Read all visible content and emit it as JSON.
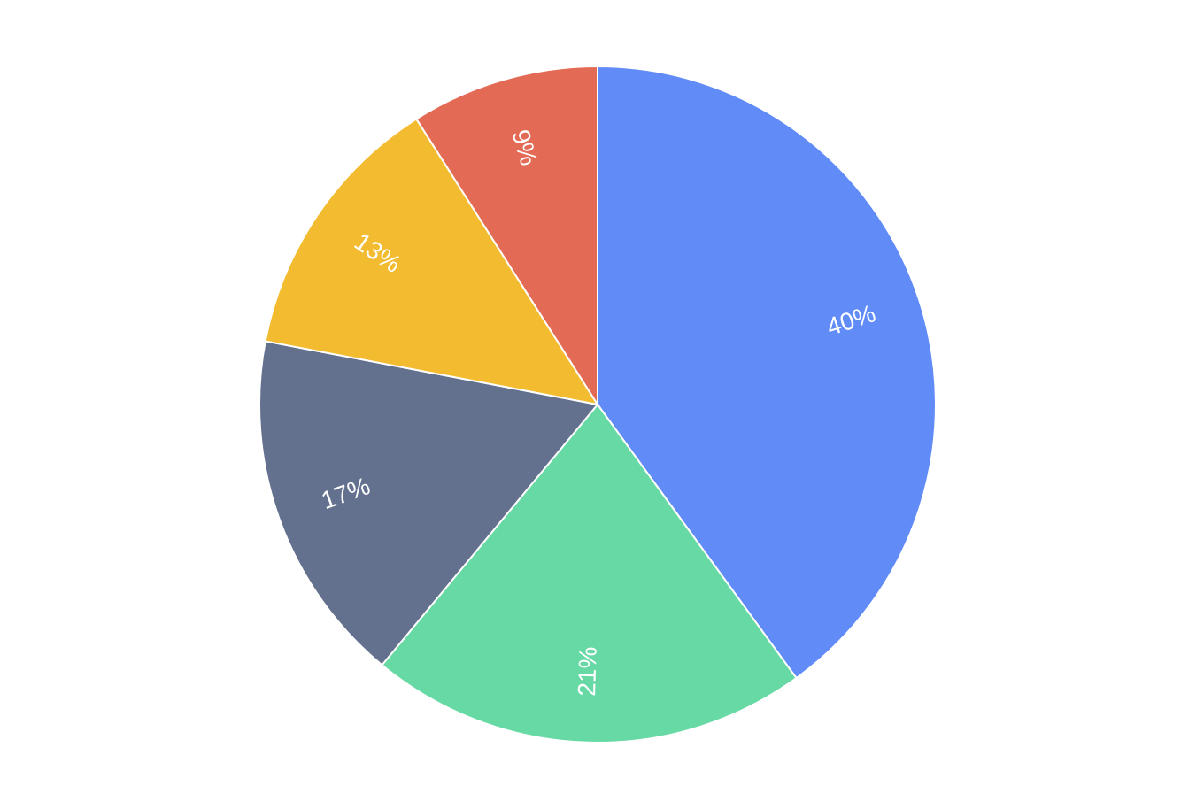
{
  "chart_data": {
    "type": "pie",
    "values": [
      40,
      21,
      17,
      13,
      9
    ],
    "value_labels": [
      "40%",
      "21%",
      "17%",
      "13%",
      "9%"
    ],
    "colors": [
      "#618bf7",
      "#66d9a4",
      "#63708e",
      "#f3bb2f",
      "#e36a54"
    ]
  }
}
